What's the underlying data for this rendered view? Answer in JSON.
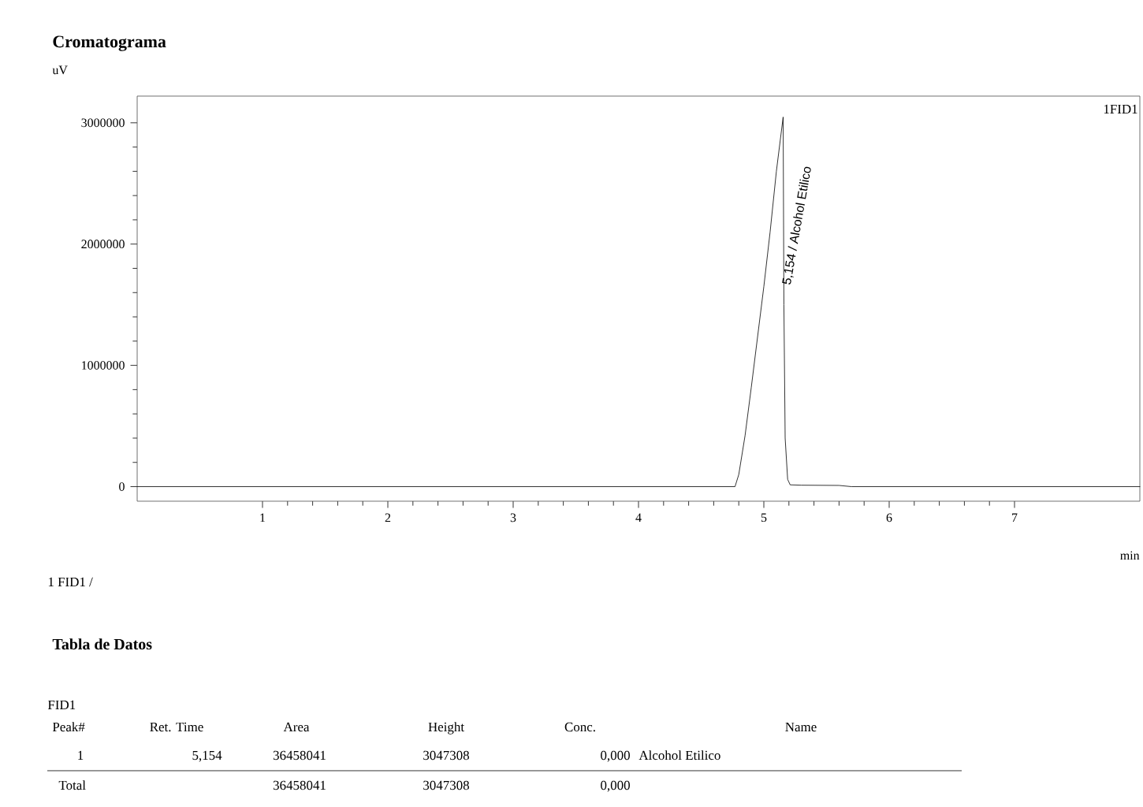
{
  "chart_data": {
    "type": "line",
    "title": "Cromatograma",
    "xlabel": "min",
    "ylabel": "uV",
    "xlim": [
      0,
      8
    ],
    "ylim": [
      -120000,
      3220000
    ],
    "xticks": [
      1,
      2,
      3,
      4,
      5,
      6,
      7
    ],
    "yticks": [
      0,
      1000000,
      2000000,
      3000000
    ],
    "marker": "none",
    "line_style": "solid",
    "series": [
      {
        "color": "#000000",
        "x": [
          0,
          1,
          2,
          3,
          4,
          4.77,
          4.8,
          4.85,
          4.9,
          5.0,
          5.05,
          5.1,
          5.154,
          5.16,
          5.17,
          5.19,
          5.21,
          5.3,
          5.6,
          5.7,
          8
        ],
        "values": [
          0,
          0,
          0,
          0,
          0,
          0,
          100000,
          420000,
          820000,
          1650000,
          2100000,
          2600000,
          3047308,
          1500000,
          400000,
          60000,
          15000,
          12000,
          10000,
          0,
          0
        ]
      }
    ],
    "annotations": [
      {
        "text": "5,154 / Alcohol Etilico",
        "x": 5.18,
        "y": 1650000
      },
      "1FID1",
      "1  FID1 /",
      "Tabla de Datos",
      "FID1",
      "Peak#",
      "Ret. Time",
      "Area",
      "Height",
      "Conc.",
      "Name",
      "1",
      "5,154",
      "36458041",
      "3047308",
      "0,000",
      "Alcohol Etilico",
      "Total",
      "36458041",
      "3047308",
      "0,000"
    ]
  }
}
